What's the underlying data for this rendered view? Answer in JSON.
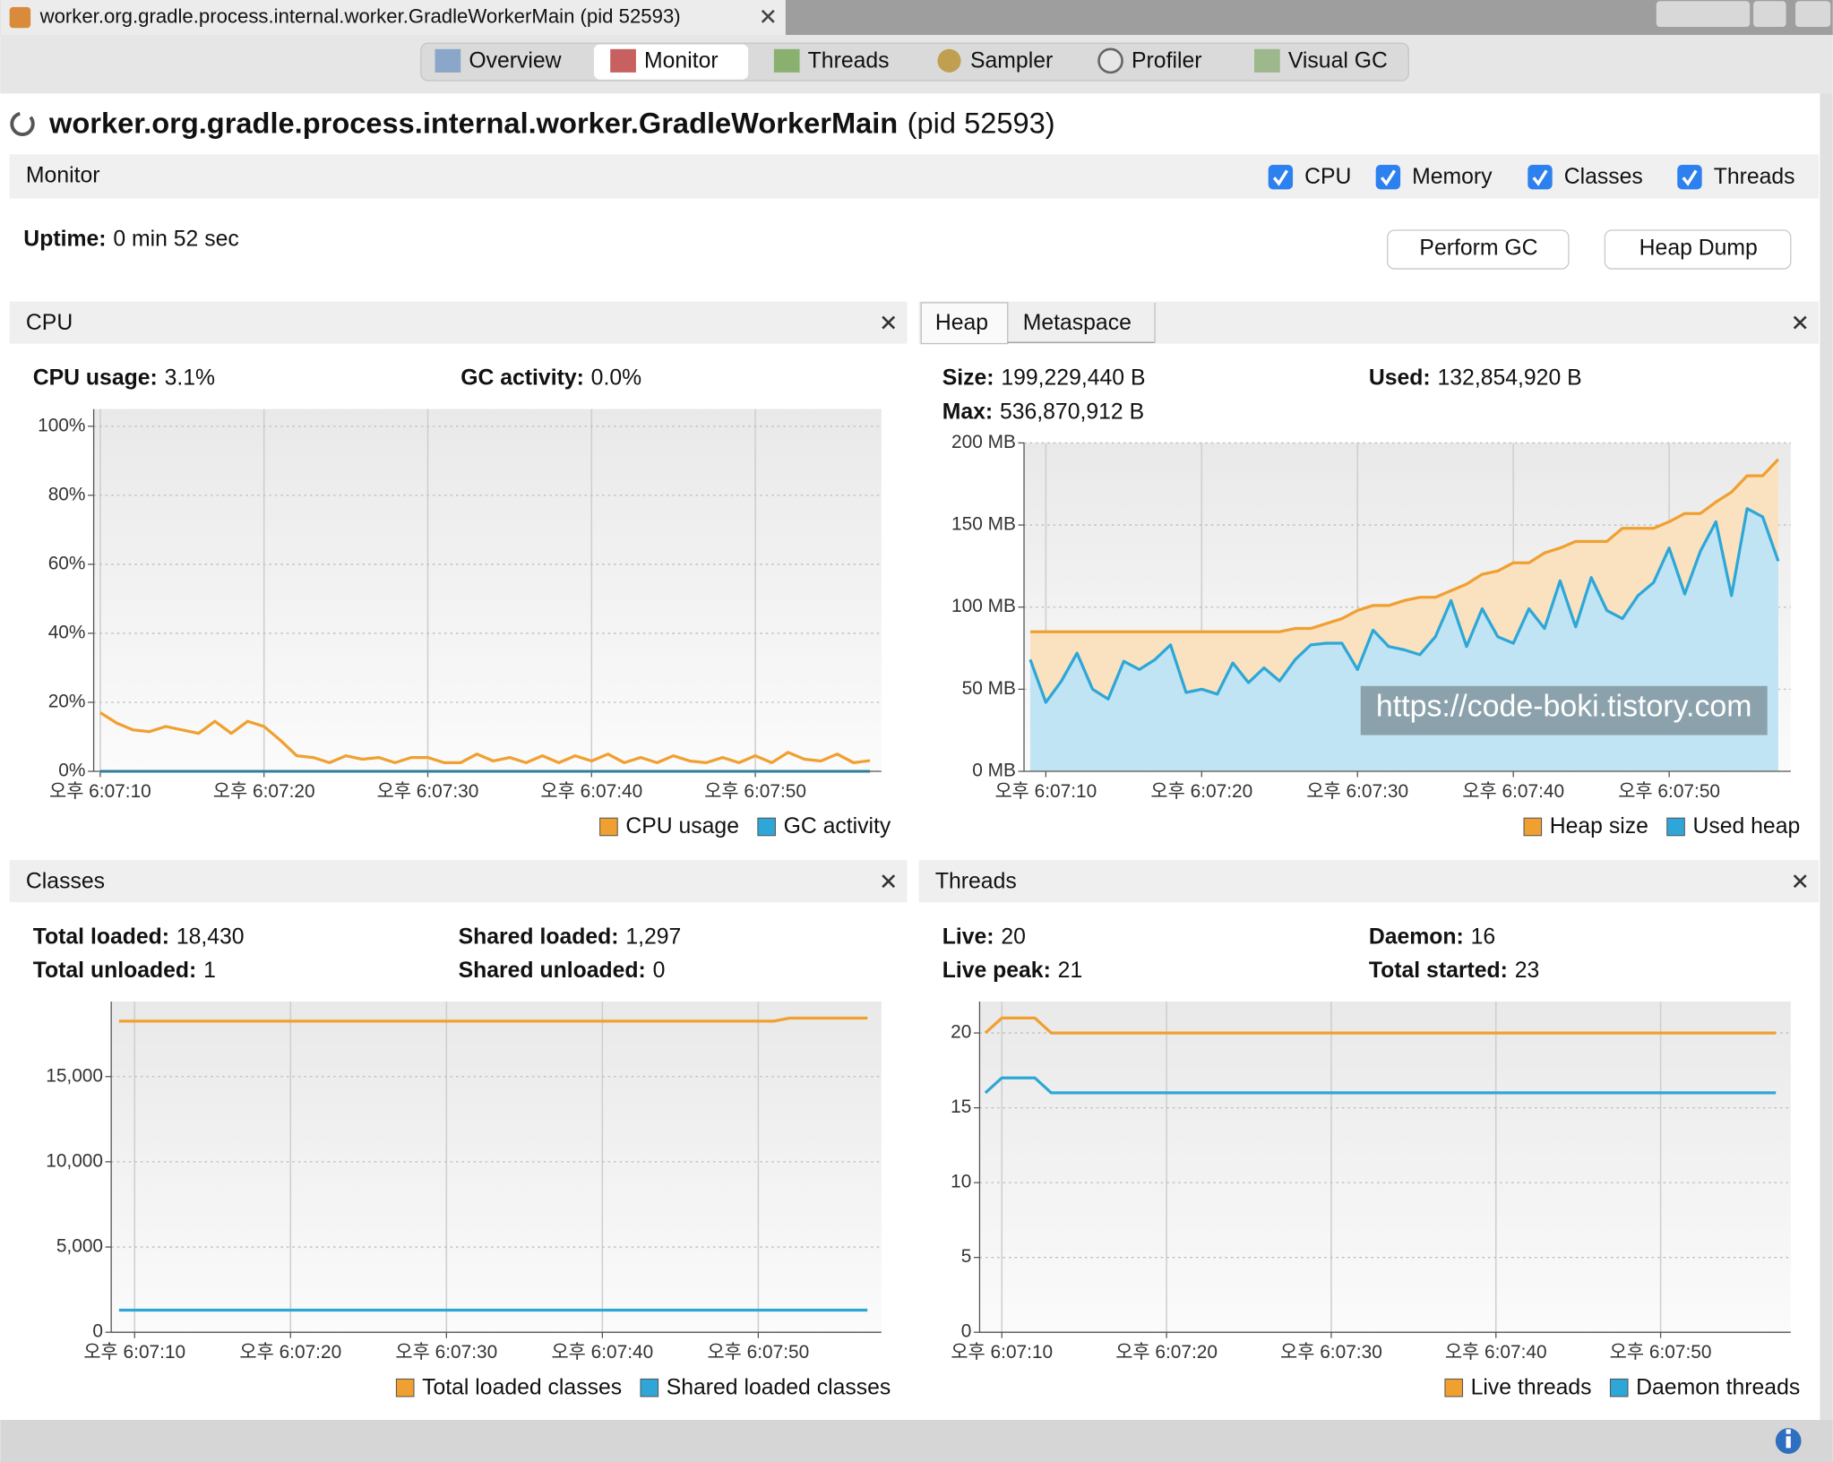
{
  "window": {
    "tab_title": "worker.org.gradle.process.internal.worker.GradleWorkerMain (pid 52593)",
    "tabs": [
      "Overview",
      "Monitor",
      "Threads",
      "Sampler",
      "Profiler",
      "Visual GC"
    ]
  },
  "header": {
    "title": "worker.org.gradle.process.internal.worker.GradleWorkerMain",
    "pid": "(pid 52593)"
  },
  "monitor": {
    "title": "Monitor",
    "checkboxes": [
      "CPU",
      "Memory",
      "Classes",
      "Threads"
    ],
    "uptime_label": "Uptime:",
    "uptime": "0 min 52 sec",
    "buttons": [
      "Perform GC",
      "Heap Dump"
    ]
  },
  "chart_data": [
    {
      "type": "line",
      "title": "CPU",
      "stats": [
        {
          "label": "CPU usage:",
          "value": "3.1%"
        },
        {
          "label": "GC activity:",
          "value": "0.0%"
        }
      ],
      "xlim": [
        9.6,
        57.7
      ],
      "xticks": [
        {
          "value": 10,
          "label": "오후 6:07:10"
        },
        {
          "value": 20,
          "label": "오후 6:07:20"
        },
        {
          "value": 30,
          "label": "오후 6:07:30"
        },
        {
          "value": 40,
          "label": "오후 6:07:40"
        },
        {
          "value": 50,
          "label": "오후 6:07:50"
        }
      ],
      "ylim": [
        0,
        105
      ],
      "yticks": [
        {
          "value": 0,
          "label": "0%"
        },
        {
          "value": 20,
          "label": "20%"
        },
        {
          "value": 40,
          "label": "40%"
        },
        {
          "value": 60,
          "label": "60%"
        },
        {
          "value": 80,
          "label": "80%"
        },
        {
          "value": 100,
          "label": "100%"
        }
      ],
      "x": [
        10,
        11,
        12,
        13,
        14,
        15,
        16,
        17,
        18,
        19,
        20,
        21,
        22,
        23,
        24,
        25,
        26,
        27,
        28,
        29,
        30,
        31,
        32,
        33,
        34,
        35,
        36,
        37,
        38,
        39,
        40,
        41,
        42,
        43,
        44,
        45,
        46,
        47,
        48,
        49,
        50,
        51,
        52,
        53,
        54,
        55,
        56,
        57
      ],
      "series": [
        {
          "name": "CPU usage",
          "color": "#f0a030",
          "values": [
            17,
            14,
            12,
            11.5,
            13,
            12,
            11,
            14.5,
            11,
            14.5,
            13,
            9,
            4.5,
            4,
            2.5,
            4.5,
            3.5,
            4,
            2.5,
            4,
            4,
            2.5,
            2.5,
            5,
            3,
            4,
            2.5,
            4.5,
            2.5,
            4.5,
            3,
            5,
            2.5,
            4,
            2.5,
            4.5,
            3,
            2.5,
            4,
            2.5,
            4.5,
            2.5,
            5.5,
            3.5,
            3,
            5,
            2.5,
            3.1
          ]
        },
        {
          "name": "GC activity",
          "color": "#2ea7d8",
          "values": [
            0,
            0,
            0,
            0,
            0,
            0,
            0,
            0,
            0,
            0,
            0,
            0,
            0,
            0,
            0,
            0,
            0,
            0,
            0,
            0,
            0,
            0,
            0,
            0,
            0,
            0,
            0,
            0,
            0,
            0,
            0,
            0,
            0,
            0,
            0,
            0,
            0,
            0,
            0,
            0,
            0,
            0,
            0,
            0,
            0,
            0,
            0,
            0
          ]
        }
      ]
    },
    {
      "type": "area",
      "title": "Heap",
      "other_tab": "Metaspace",
      "stats": [
        {
          "label": "Size:",
          "value": "199,229,440 B"
        },
        {
          "label": "Max:",
          "value": "536,870,912 B"
        },
        {
          "label": "Used:",
          "value": "132,854,920 B"
        }
      ],
      "annotation": "https://code-boki.tistory.com",
      "xlim": [
        8.6,
        57.8
      ],
      "xticks": [
        {
          "value": 10,
          "label": "오후 6:07:10"
        },
        {
          "value": 20,
          "label": "오후 6:07:20"
        },
        {
          "value": 30,
          "label": "오후 6:07:30"
        },
        {
          "value": 40,
          "label": "오후 6:07:40"
        },
        {
          "value": 50,
          "label": "오후 6:07:50"
        }
      ],
      "ylim": [
        0,
        200
      ],
      "yticks": [
        {
          "value": 0,
          "label": "0 MB"
        },
        {
          "value": 50,
          "label": "50 MB"
        },
        {
          "value": 100,
          "label": "100 MB"
        },
        {
          "value": 150,
          "label": "150 MB"
        },
        {
          "value": 200,
          "label": "200 MB"
        }
      ],
      "x": [
        9,
        10,
        11,
        12,
        13,
        14,
        15,
        16,
        17,
        18,
        19,
        20,
        21,
        22,
        23,
        24,
        25,
        26,
        27,
        28,
        29,
        30,
        31,
        32,
        33,
        34,
        35,
        36,
        37,
        38,
        39,
        40,
        41,
        42,
        43,
        44,
        45,
        46,
        47,
        48,
        49,
        50,
        51,
        52,
        53,
        54,
        55,
        56,
        57
      ],
      "series": [
        {
          "name": "Heap size",
          "color": "#f0a030",
          "values": [
            85,
            85,
            85,
            85,
            85,
            85,
            85,
            85,
            85,
            85,
            85,
            85,
            85,
            85,
            85,
            85,
            85,
            87,
            87,
            90,
            93,
            98,
            101,
            101,
            104,
            106,
            106,
            110,
            114,
            120,
            122,
            127,
            127,
            133,
            136,
            140,
            140,
            140,
            148,
            148,
            148,
            152,
            157,
            157,
            164,
            170,
            180,
            180,
            190
          ]
        },
        {
          "name": "Used heap",
          "color": "#2ea7d8",
          "values": [
            68,
            42,
            55,
            72,
            50,
            44,
            67,
            62,
            68,
            77,
            48,
            50,
            47,
            66,
            54,
            63,
            55,
            68,
            77,
            78,
            78,
            62,
            86,
            76,
            74,
            71,
            82,
            104,
            76,
            99,
            82,
            78,
            99,
            87,
            116,
            88,
            118,
            98,
            93,
            107,
            115,
            136,
            108,
            134,
            152,
            107,
            160,
            155,
            128
          ]
        }
      ]
    },
    {
      "type": "line",
      "title": "Classes",
      "stats": [
        {
          "label": "Total loaded:",
          "value": "18,430"
        },
        {
          "label": "Total unloaded:",
          "value": "1"
        },
        {
          "label": "Shared loaded:",
          "value": "1,297"
        },
        {
          "label": "Shared unloaded:",
          "value": "0"
        }
      ],
      "xlim": [
        8.5,
        57.9
      ],
      "xticks": [
        {
          "value": 10,
          "label": "오후 6:07:10"
        },
        {
          "value": 20,
          "label": "오후 6:07:20"
        },
        {
          "value": 30,
          "label": "오후 6:07:30"
        },
        {
          "value": 40,
          "label": "오후 6:07:40"
        },
        {
          "value": 50,
          "label": "오후 6:07:50"
        }
      ],
      "ylim": [
        0,
        19400
      ],
      "yticks": [
        0,
        {
          "value": 5000,
          "label": "5,000"
        },
        {
          "value": 10000,
          "label": "10,000"
        },
        {
          "value": 15000,
          "label": "15,000"
        }
      ],
      "x": [
        9,
        10,
        11,
        12,
        13,
        14,
        15,
        16,
        17,
        18,
        19,
        20,
        21,
        22,
        23,
        24,
        25,
        26,
        27,
        28,
        29,
        30,
        31,
        32,
        33,
        34,
        35,
        36,
        37,
        38,
        39,
        40,
        41,
        42,
        43,
        44,
        45,
        46,
        47,
        48,
        49,
        50,
        51,
        52,
        53,
        54,
        55,
        56,
        57
      ],
      "series": [
        {
          "name": "Total loaded classes",
          "color": "#f0a030",
          "values": [
            18250,
            18250,
            18250,
            18250,
            18250,
            18250,
            18250,
            18250,
            18250,
            18250,
            18250,
            18250,
            18250,
            18250,
            18250,
            18250,
            18250,
            18250,
            18250,
            18250,
            18250,
            18250,
            18250,
            18250,
            18250,
            18250,
            18250,
            18250,
            18250,
            18250,
            18250,
            18250,
            18250,
            18250,
            18250,
            18250,
            18250,
            18250,
            18250,
            18250,
            18250,
            18250,
            18250,
            18430,
            18430,
            18430,
            18430,
            18430,
            18430
          ]
        },
        {
          "name": "Shared loaded classes",
          "color": "#2ea7d8",
          "values": [
            1297,
            1297,
            1297,
            1297,
            1297,
            1297,
            1297,
            1297,
            1297,
            1297,
            1297,
            1297,
            1297,
            1297,
            1297,
            1297,
            1297,
            1297,
            1297,
            1297,
            1297,
            1297,
            1297,
            1297,
            1297,
            1297,
            1297,
            1297,
            1297,
            1297,
            1297,
            1297,
            1297,
            1297,
            1297,
            1297,
            1297,
            1297,
            1297,
            1297,
            1297,
            1297,
            1297,
            1297,
            1297,
            1297,
            1297,
            1297,
            1297
          ]
        }
      ]
    },
    {
      "type": "line",
      "title": "Threads",
      "stats": [
        {
          "label": "Live:",
          "value": "20"
        },
        {
          "label": "Live peak:",
          "value": "21"
        },
        {
          "label": "Daemon:",
          "value": "16"
        },
        {
          "label": "Total started:",
          "value": "23"
        }
      ],
      "xlim": [
        8.65,
        57.9
      ],
      "xticks": [
        {
          "value": 10,
          "label": "오후 6:07:10"
        },
        {
          "value": 20,
          "label": "오후 6:07:20"
        },
        {
          "value": 30,
          "label": "오후 6:07:30"
        },
        {
          "value": 40,
          "label": "오후 6:07:40"
        },
        {
          "value": 50,
          "label": "오후 6:07:50"
        }
      ],
      "ylim": [
        0,
        22.1
      ],
      "yticks": [
        0,
        5,
        10,
        15,
        20
      ],
      "x": [
        9,
        10,
        11,
        12,
        13,
        14,
        15,
        16,
        17,
        18,
        19,
        20,
        21,
        22,
        23,
        24,
        25,
        26,
        27,
        28,
        29,
        30,
        31,
        32,
        33,
        34,
        35,
        36,
        37,
        38,
        39,
        40,
        41,
        42,
        43,
        44,
        45,
        46,
        47,
        48,
        49,
        50,
        51,
        52,
        53,
        54,
        55,
        56,
        57
      ],
      "series": [
        {
          "name": "Live threads",
          "color": "#f0a030",
          "values": [
            20,
            21,
            21,
            21,
            20,
            20,
            20,
            20,
            20,
            20,
            20,
            20,
            20,
            20,
            20,
            20,
            20,
            20,
            20,
            20,
            20,
            20,
            20,
            20,
            20,
            20,
            20,
            20,
            20,
            20,
            20,
            20,
            20,
            20,
            20,
            20,
            20,
            20,
            20,
            20,
            20,
            20,
            20,
            20,
            20,
            20,
            20,
            20,
            20
          ]
        },
        {
          "name": "Daemon threads",
          "color": "#2ea7d8",
          "values": [
            16,
            17,
            17,
            17,
            16,
            16,
            16,
            16,
            16,
            16,
            16,
            16,
            16,
            16,
            16,
            16,
            16,
            16,
            16,
            16,
            16,
            16,
            16,
            16,
            16,
            16,
            16,
            16,
            16,
            16,
            16,
            16,
            16,
            16,
            16,
            16,
            16,
            16,
            16,
            16,
            16,
            16,
            16,
            16,
            16,
            16,
            16,
            16,
            16
          ]
        }
      ]
    }
  ]
}
